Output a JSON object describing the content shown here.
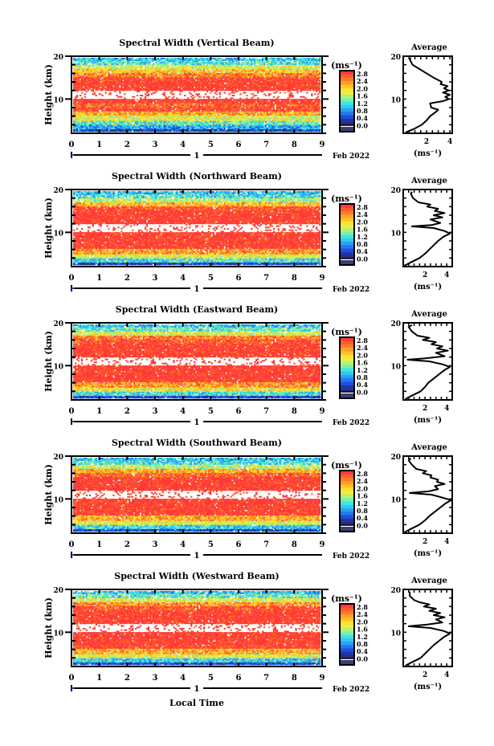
{
  "chart_data": [
    {
      "type": "heatmap",
      "title": "Spectral Width (Vertical Beam)",
      "ylabel": "Height (km)",
      "xlabel": "",
      "xlim": [
        0,
        9
      ],
      "ylim": [
        2,
        20
      ],
      "x_ticks": [
        "0",
        "1",
        "2",
        "3",
        "4",
        "5",
        "6",
        "7",
        "8",
        "9"
      ],
      "y_ticks": [
        "10",
        "20"
      ],
      "date_label": "1",
      "date_suffix": "Feb 2022",
      "colorbar": {
        "unit": "(ms⁻¹)",
        "ticks": [
          "2.8",
          "2.4",
          "2.0",
          "1.6",
          "1.2",
          "0.8",
          "0.4",
          "0.0"
        ],
        "range": [
          0,
          3.0
        ]
      },
      "profile_heights_km": [
        2.5,
        3.5,
        4.5,
        5.5,
        6.5,
        7.5,
        8.5,
        9.5,
        10.5,
        11.5,
        12.5,
        13.5,
        14.5,
        15.5,
        16.5,
        17.5,
        18.5,
        19.5
      ],
      "profile_values": [
        0.4,
        0.9,
        1.3,
        1.8,
        2.3,
        2.9,
        2.7,
        3.0,
        null,
        null,
        3.0,
        3.0,
        2.9,
        2.5,
        2.1,
        1.8,
        1.2,
        1.0
      ],
      "average": {
        "title": "Average",
        "xlabel": "(ms⁻¹)",
        "x_ticks": [
          "2",
          "4"
        ],
        "xlim": [
          0,
          4.2
        ],
        "heights": [
          2.2,
          3,
          4,
          5,
          6,
          7,
          7.5,
          8,
          9,
          9.5,
          10,
          10.5,
          11,
          11.5,
          12,
          12.5,
          13,
          13.5,
          14,
          15,
          16,
          17,
          18,
          19,
          19.7
        ],
        "values": [
          0.2,
          0.9,
          1.6,
          2.0,
          2.3,
          2.8,
          3.0,
          2.4,
          2.3,
          3.4,
          3.9,
          3.6,
          4.0,
          3.4,
          3.9,
          3.5,
          3.8,
          3.2,
          3.3,
          2.6,
          2.0,
          1.4,
          0.8,
          0.6,
          0.6
        ]
      }
    },
    {
      "type": "heatmap",
      "title": "Spectral Width (Northward Beam)",
      "ylabel": "Height (km)",
      "xlabel": "",
      "xlim": [
        0,
        9
      ],
      "ylim": [
        2,
        20
      ],
      "x_ticks": [
        "0",
        "1",
        "2",
        "3",
        "4",
        "5",
        "6",
        "7",
        "8",
        "9"
      ],
      "y_ticks": [
        "10",
        "20"
      ],
      "date_label": "1",
      "date_suffix": "Feb 2022",
      "colorbar": {
        "unit": "(ms⁻¹)",
        "ticks": [
          "2.8",
          "2.4",
          "2.0",
          "1.6",
          "1.2",
          "0.8",
          "0.4",
          "0.0"
        ],
        "range": [
          0,
          3.0
        ]
      },
      "profile_heights_km": [
        2.5,
        3.5,
        4.5,
        5.5,
        6.5,
        7.5,
        8.5,
        9.5,
        10.5,
        11.5,
        12.5,
        13.5,
        14.5,
        15.5,
        16.5,
        17.5,
        18.5,
        19.5
      ],
      "profile_values": [
        0.4,
        1.2,
        1.8,
        2.4,
        3.0,
        3.0,
        3.0,
        3.0,
        null,
        null,
        3.0,
        3.0,
        3.0,
        2.8,
        2.2,
        1.6,
        1.2,
        1.0
      ],
      "average": {
        "title": "Average",
        "xlabel": "(ms⁻¹)",
        "x_ticks": [
          "2",
          "4"
        ],
        "xlim": [
          0,
          4.5
        ],
        "heights": [
          2.2,
          3,
          4,
          5,
          6,
          7,
          8,
          9,
          9.7,
          10.3,
          11,
          11.4,
          11.7,
          12.2,
          13,
          13.5,
          14,
          14.5,
          15,
          15.5,
          16,
          16.5,
          17,
          18,
          19,
          19.5
        ],
        "values": [
          0.1,
          0.7,
          1.5,
          2.0,
          2.4,
          2.8,
          3.2,
          3.7,
          4.3,
          3.8,
          2.8,
          0.8,
          2.6,
          3.4,
          2.5,
          3.6,
          2.8,
          3.8,
          2.9,
          3.2,
          2.2,
          2.5,
          1.4,
          0.9,
          0.7,
          0.8
        ]
      }
    },
    {
      "type": "heatmap",
      "title": "Spectral Width (Eastward Beam)",
      "ylabel": "Height (km)",
      "xlabel": "",
      "xlim": [
        0,
        9
      ],
      "ylim": [
        2,
        20
      ],
      "x_ticks": [
        "0",
        "1",
        "2",
        "3",
        "4",
        "5",
        "6",
        "7",
        "8",
        "9"
      ],
      "y_ticks": [
        "10",
        "20"
      ],
      "date_label": "1",
      "date_suffix": "Feb 2022",
      "colorbar": {
        "unit": "(ms⁻¹)",
        "ticks": [
          "2.8",
          "2.4",
          "2.0",
          "1.6",
          "1.2",
          "0.8",
          "0.4",
          "0.0"
        ],
        "range": [
          0,
          3.0
        ]
      },
      "profile_heights_km": [
        2.5,
        3.5,
        4.5,
        5.5,
        6.5,
        7.5,
        8.5,
        9.5,
        10.5,
        11.5,
        12.5,
        13.5,
        14.5,
        15.5,
        16.5,
        17.5,
        18.5,
        19.5
      ],
      "profile_values": [
        0.5,
        1.2,
        1.9,
        2.4,
        3.0,
        3.0,
        3.0,
        3.0,
        null,
        null,
        3.0,
        3.0,
        3.0,
        2.8,
        2.5,
        1.8,
        1.3,
        1.0
      ],
      "average": {
        "title": "Average",
        "xlabel": "(ms⁻¹)",
        "x_ticks": [
          "2",
          "4"
        ],
        "xlim": [
          0,
          4.5
        ],
        "heights": [
          2.2,
          3,
          4,
          5,
          6,
          7,
          8,
          9,
          9.7,
          10.3,
          11,
          11.4,
          11.7,
          12.2,
          13,
          13.5,
          14,
          14.5,
          15,
          15.5,
          16,
          16.5,
          17,
          18,
          19,
          19.5
        ],
        "values": [
          0.2,
          0.8,
          1.6,
          2.0,
          2.3,
          2.8,
          3.3,
          3.8,
          4.3,
          3.6,
          2.4,
          0.4,
          2.0,
          3.8,
          3.0,
          4.1,
          3.1,
          3.6,
          2.6,
          3.0,
          1.8,
          2.4,
          1.3,
          0.8,
          0.5,
          0.8
        ]
      }
    },
    {
      "type": "heatmap",
      "title": "Spectral Width (Southward Beam)",
      "ylabel": "Height (km)",
      "xlabel": "",
      "xlim": [
        0,
        9
      ],
      "ylim": [
        2,
        20
      ],
      "x_ticks": [
        "0",
        "1",
        "2",
        "3",
        "4",
        "5",
        "6",
        "7",
        "8",
        "9"
      ],
      "y_ticks": [
        "10",
        "20"
      ],
      "date_label": "1",
      "date_suffix": "Feb 2022",
      "colorbar": {
        "unit": "(ms⁻¹)",
        "ticks": [
          "2.8",
          "2.4",
          "2.0",
          "1.6",
          "1.2",
          "0.8",
          "0.4",
          "0.0"
        ],
        "range": [
          0,
          3.0
        ]
      },
      "profile_heights_km": [
        2.5,
        3.5,
        4.5,
        5.5,
        6.5,
        7.5,
        8.5,
        9.5,
        10.5,
        11.5,
        12.5,
        13.5,
        14.5,
        15.5,
        16.5,
        17.5,
        18.5,
        19.5
      ],
      "profile_values": [
        0.5,
        1.1,
        1.8,
        2.3,
        3.0,
        3.0,
        3.0,
        3.0,
        null,
        null,
        3.0,
        3.0,
        3.0,
        2.7,
        2.3,
        1.7,
        1.2,
        1.0
      ],
      "average": {
        "title": "Average",
        "xlabel": "(ms⁻¹)",
        "x_ticks": [
          "2",
          "4"
        ],
        "xlim": [
          0,
          4.5
        ],
        "heights": [
          2.2,
          3,
          4,
          5,
          6,
          7,
          8,
          9,
          9.7,
          10.3,
          11,
          11.4,
          11.8,
          12.3,
          13,
          13.5,
          14,
          14.5,
          15,
          15.5,
          16,
          16.5,
          17,
          18,
          19,
          19.5
        ],
        "values": [
          0.1,
          0.7,
          1.5,
          2.0,
          2.4,
          2.9,
          3.4,
          3.9,
          4.4,
          3.6,
          2.6,
          0.6,
          2.4,
          3.2,
          2.9,
          3.8,
          3.1,
          3.2,
          2.5,
          2.6,
          1.8,
          2.1,
          1.2,
          0.8,
          0.5,
          0.7
        ]
      }
    },
    {
      "type": "heatmap",
      "title": "Spectral Width (Westward Beam)",
      "ylabel": "Height (km)",
      "xlabel": "Local Time",
      "xlim": [
        0,
        9
      ],
      "ylim": [
        2,
        20
      ],
      "x_ticks": [
        "0",
        "1",
        "2",
        "3",
        "4",
        "5",
        "6",
        "7",
        "8",
        "9"
      ],
      "y_ticks": [
        "10",
        "20"
      ],
      "date_label": "1",
      "date_suffix": "Feb 2022",
      "colorbar": {
        "unit": "(ms⁻¹)",
        "ticks": [
          "2.8",
          "2.4",
          "2.0",
          "1.6",
          "1.2",
          "0.8",
          "0.4",
          "0.0"
        ],
        "range": [
          0,
          3.0
        ]
      },
      "profile_heights_km": [
        2.5,
        3.5,
        4.5,
        5.5,
        6.5,
        7.5,
        8.5,
        9.5,
        10.5,
        11.5,
        12.5,
        13.5,
        14.5,
        15.5,
        16.5,
        17.5,
        18.5,
        19.5
      ],
      "profile_values": [
        0.5,
        1.1,
        1.8,
        2.3,
        2.9,
        3.0,
        3.0,
        3.0,
        null,
        null,
        3.0,
        3.0,
        3.0,
        2.8,
        2.4,
        1.8,
        1.3,
        1.0
      ],
      "average": {
        "title": "Average",
        "xlabel": "(ms⁻¹)",
        "x_ticks": [
          "2",
          "4"
        ],
        "xlim": [
          0,
          4.5
        ],
        "heights": [
          2.2,
          3,
          4,
          5,
          6,
          7,
          8,
          9,
          9.7,
          10.3,
          11,
          11.4,
          11.8,
          12.3,
          13,
          13.5,
          14,
          14.5,
          15,
          15.5,
          16,
          16.5,
          17,
          17.5,
          18.5,
          19.5
        ],
        "values": [
          0.2,
          0.8,
          1.6,
          2.0,
          2.4,
          2.8,
          3.3,
          3.8,
          4.3,
          3.7,
          2.5,
          0.5,
          2.2,
          3.6,
          3.0,
          3.8,
          2.8,
          3.4,
          2.4,
          3.0,
          1.9,
          2.4,
          1.5,
          1.0,
          0.6,
          0.6
        ]
      }
    }
  ],
  "colors": {
    "scale": [
      "#2b2c7e",
      "#2233aa",
      "#1f4fe0",
      "#1f78f0",
      "#2aa0f5",
      "#30c8f0",
      "#3fe8e0",
      "#7af0b0",
      "#b8f070",
      "#e8f048",
      "#ffe030",
      "#ffc028",
      "#ffa028",
      "#ff7a28",
      "#ff5a30",
      "#ff3a38"
    ],
    "below_scale": "#3a3f6e"
  }
}
